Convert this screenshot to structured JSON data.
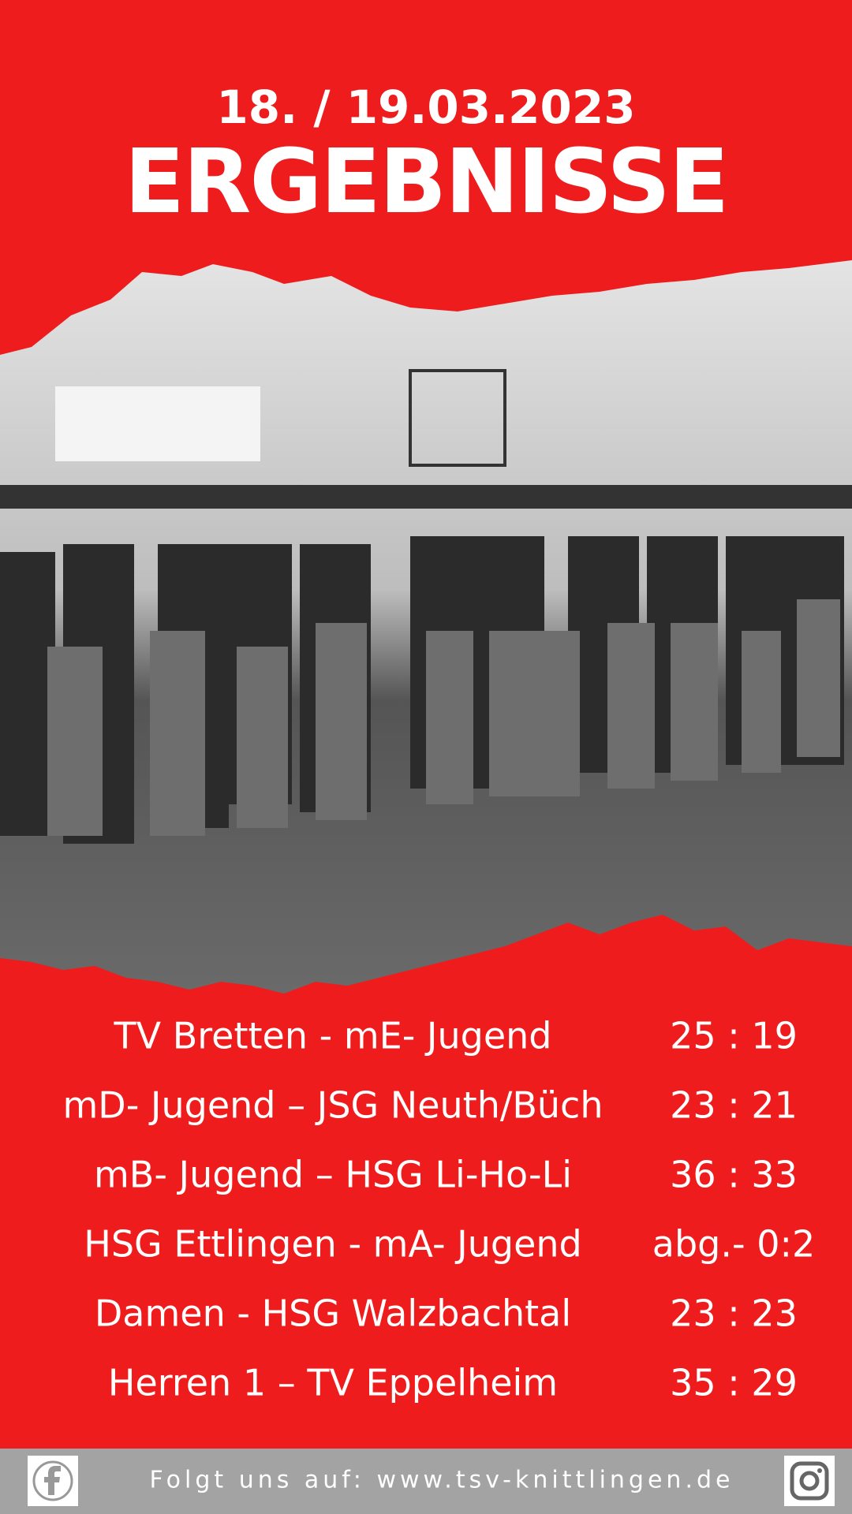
{
  "header": {
    "date": "18. / 19.03.2023",
    "title": "ERGEBNISSE"
  },
  "results": [
    {
      "match": "TV Bretten - mE- Jugend",
      "score": "25 : 19"
    },
    {
      "match": "mD- Jugend – JSG Neuth/Büch",
      "score": "23 : 21"
    },
    {
      "match": "mB- Jugend – HSG Li-Ho-Li",
      "score": "36 : 33"
    },
    {
      "match": "HSG Ettlingen - mA- Jugend",
      "score": "abg.- 0:2"
    },
    {
      "match": "Damen - HSG Walzbachtal",
      "score": "23 : 23"
    },
    {
      "match": "Herren 1 – TV Eppelheim",
      "score": "35 : 29"
    }
  ],
  "footer": {
    "text": "Folgt uns auf: www.tsv-knittlingen.de"
  }
}
